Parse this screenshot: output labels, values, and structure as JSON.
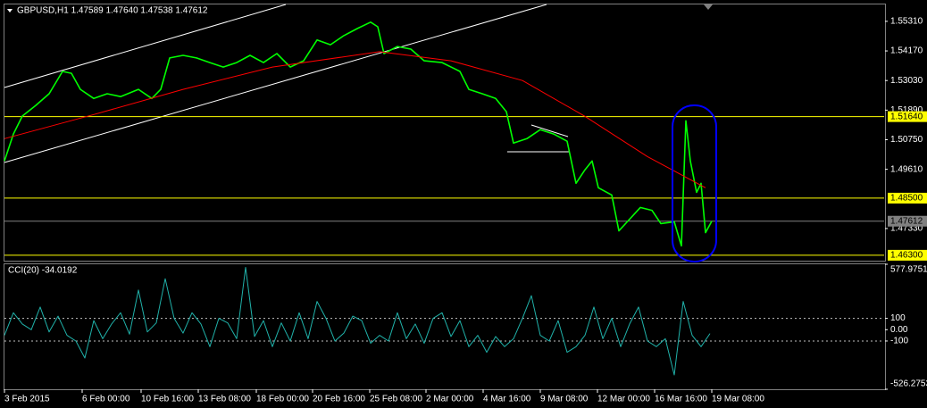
{
  "chart_data": [
    {
      "type": "line",
      "title": "GBPUSD,H1 1.47589 1.47640 1.47538 1.47612",
      "xlim": [
        0,
        985
      ],
      "ylim": [
        1.4609,
        1.5596
      ],
      "yticks": [
        {
          "value": 1.5531,
          "label": "1.55310"
        },
        {
          "value": 1.5417,
          "label": "1.54170"
        },
        {
          "value": 1.5303,
          "label": "1.53030"
        },
        {
          "value": 1.5189,
          "label": "1.51890"
        },
        {
          "value": 1.5075,
          "label": "1.50750"
        },
        {
          "value": 1.4961,
          "label": "1.49610"
        },
        {
          "value": 1.4733,
          "label": "1.47330"
        }
      ],
      "levels": [
        {
          "value": 1.5164,
          "label": "1.51640",
          "color": "#ffff00"
        },
        {
          "value": 1.485,
          "label": "1.48500",
          "color": "#ffff00"
        },
        {
          "value": 1.47612,
          "label": "1.47612",
          "color": "#808080"
        },
        {
          "value": 1.463,
          "label": "1.46300",
          "color": "#ffff00"
        }
      ],
      "series": [
        {
          "color": "#00ff00",
          "x": [
            0,
            10,
            20,
            35,
            50,
            65,
            75,
            85,
            100,
            115,
            130,
            150,
            165,
            175,
            185,
            200,
            215,
            230,
            245,
            260,
            275,
            290,
            305,
            320,
            335,
            350,
            365,
            380,
            395,
            410,
            418,
            425,
            440,
            455,
            470,
            490,
            510,
            520,
            535,
            550,
            562,
            570,
            585,
            600,
            615,
            630,
            640,
            650,
            658,
            665,
            680,
            688,
            700,
            712,
            725,
            735,
            750,
            758,
            763,
            768,
            775,
            780,
            785,
            792
          ],
          "values": [
            1.4993,
            1.5097,
            1.5166,
            1.5207,
            1.5252,
            1.5338,
            1.5331,
            1.5269,
            1.5234,
            1.5252,
            1.5241,
            1.5269,
            1.5234,
            1.5269,
            1.539,
            1.54,
            1.539,
            1.5372,
            1.5355,
            1.5372,
            1.54,
            1.5372,
            1.5407,
            1.5355,
            1.5379,
            1.5459,
            1.5441,
            1.5476,
            1.5503,
            1.5528,
            1.551,
            1.5407,
            1.5434,
            1.5424,
            1.5379,
            1.5372,
            1.5338,
            1.5269,
            1.5252,
            1.5234,
            1.5183,
            1.5062,
            1.5079,
            1.5114,
            1.5097,
            1.5069,
            1.4907,
            1.4959,
            1.4993,
            1.489,
            1.4862,
            1.4724,
            1.4769,
            1.4814,
            1.4803,
            1.4752,
            1.4759,
            1.4666,
            1.5148,
            1.4993,
            1.4872,
            1.4907,
            1.4717,
            1.47612
          ]
        },
        {
          "color": "#ff0000",
          "x": [
            0,
            100,
            200,
            300,
            420,
            500,
            580,
            650,
            720,
            785
          ],
          "values": [
            1.5079,
            1.5172,
            1.5269,
            1.5355,
            1.5414,
            1.5379,
            1.5303,
            1.5165,
            1.501,
            1.489
          ]
        }
      ]
    },
    {
      "type": "line",
      "title": "CCI(20) -34.0192",
      "xlim": [
        0,
        985
      ],
      "ylim": [
        -526.2753,
        577.9751
      ],
      "yticks": [
        577.9751,
        100,
        {
          "value": 0,
          "label": "0.00"
        },
        -100,
        -526.2753
      ],
      "levels": [
        100,
        -100
      ],
      "xticks": [
        {
          "value": 0,
          "label": "3 Feb 2015"
        },
        {
          "value": 87,
          "label": "6 Feb 00:00"
        },
        {
          "value": 153,
          "label": "10 Feb 16:00"
        },
        {
          "value": 217,
          "label": "13 Feb 08:00"
        },
        {
          "value": 282,
          "label": "18 Feb 00:00"
        },
        {
          "value": 345,
          "label": "20 Feb 16:00"
        },
        {
          "value": 409,
          "label": "25 Feb 08:00"
        },
        {
          "value": 472,
          "label": "2 Mar 00:00"
        },
        {
          "value": 536,
          "label": "4 Mar 16:00"
        },
        {
          "value": 600,
          "label": "9 Mar 08:00"
        },
        {
          "value": 664,
          "label": "12 Mar 00:00"
        },
        {
          "value": 728,
          "label": "16 Mar 16:00"
        },
        {
          "value": 792,
          "label": "19 Mar 08:00"
        }
      ],
      "series": [
        {
          "color": "#20b2aa",
          "x": [
            0,
            10,
            20,
            30,
            40,
            50,
            60,
            70,
            80,
            90,
            100,
            110,
            120,
            130,
            140,
            150,
            160,
            170,
            180,
            190,
            200,
            210,
            220,
            230,
            240,
            250,
            260,
            270,
            280,
            290,
            300,
            310,
            320,
            330,
            340,
            350,
            360,
            370,
            380,
            390,
            400,
            410,
            420,
            430,
            440,
            450,
            460,
            470,
            480,
            490,
            500,
            510,
            520,
            530,
            540,
            550,
            560,
            570,
            580,
            590,
            600,
            610,
            620,
            630,
            640,
            650,
            660,
            670,
            680,
            690,
            700,
            710,
            720,
            730,
            740,
            750,
            760,
            770,
            780,
            790
          ],
          "values": [
            -50,
            150,
            50,
            0,
            200,
            -20,
            120,
            -50,
            -100,
            -250,
            80,
            -80,
            50,
            150,
            -40,
            350,
            -20,
            60,
            450,
            100,
            -30,
            150,
            50,
            -150,
            100,
            60,
            -80,
            550,
            -60,
            80,
            -150,
            60,
            -100,
            150,
            -80,
            250,
            100,
            -100,
            -30,
            120,
            80,
            -120,
            -50,
            -100,
            150,
            -80,
            50,
            -120,
            100,
            150,
            -60,
            80,
            -150,
            -50,
            -200,
            -60,
            -150,
            -80,
            100,
            300,
            -50,
            -100,
            80,
            -200,
            -150,
            -50,
            200,
            -80,
            100,
            -150,
            50,
            200,
            -100,
            -150,
            -80,
            -400,
            250,
            -50,
            -150,
            -34.0192
          ]
        }
      ]
    }
  ]
}
